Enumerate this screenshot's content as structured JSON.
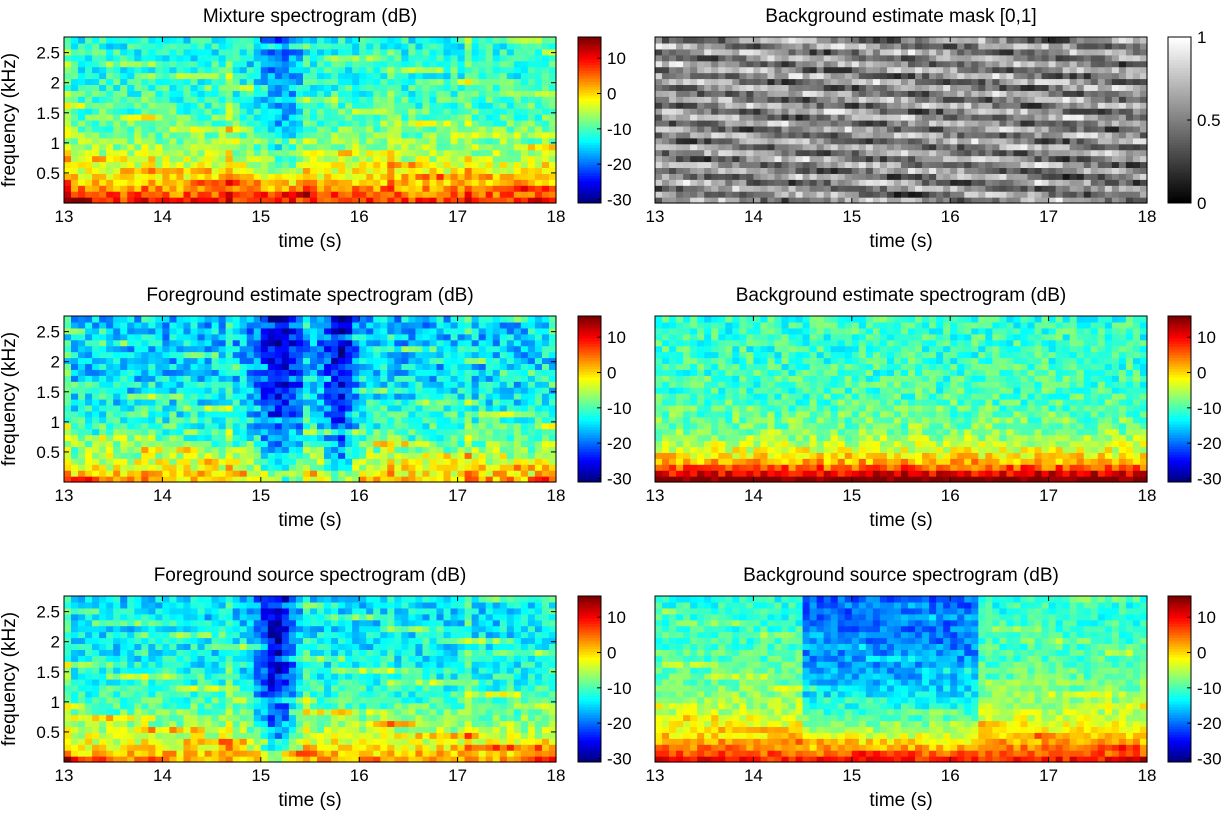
{
  "chart_data": [
    {
      "type": "heatmap",
      "title": "Mixture spectrogram (dB)",
      "xlabel": "time (s)",
      "ylabel": "frequency (kHz)",
      "xlim": [
        13,
        18
      ],
      "ylim": [
        0,
        2.76
      ],
      "xticks": [
        "13",
        "14",
        "15",
        "16",
        "17",
        "18"
      ],
      "yticks": [
        "0.5",
        "1",
        "1.5",
        "2",
        "2.5"
      ],
      "colormap": "jet",
      "clim": [
        -31,
        16
      ],
      "colorbar_ticks": [
        "10",
        "0",
        "-10",
        "-20",
        "-30"
      ]
    },
    {
      "type": "heatmap",
      "title": "Background estimate mask [0,1]",
      "xlabel": "time (s)",
      "ylabel": "",
      "xlim": [
        13,
        18
      ],
      "ylim": [
        0,
        2.76
      ],
      "xticks": [
        "13",
        "14",
        "15",
        "16",
        "17",
        "18"
      ],
      "yticks": [],
      "colormap": "gray",
      "clim": [
        0,
        1
      ],
      "colorbar_ticks": [
        "1",
        "0.5",
        "0"
      ]
    },
    {
      "type": "heatmap",
      "title": "Foreground estimate spectrogram (dB)",
      "xlabel": "time (s)",
      "ylabel": "frequency (kHz)",
      "xlim": [
        13,
        18
      ],
      "ylim": [
        0,
        2.76
      ],
      "xticks": [
        "13",
        "14",
        "15",
        "16",
        "17",
        "18"
      ],
      "yticks": [
        "0.5",
        "1",
        "1.5",
        "2",
        "2.5"
      ],
      "colormap": "jet",
      "clim": [
        -31,
        16
      ],
      "colorbar_ticks": [
        "10",
        "0",
        "-10",
        "-20",
        "-30"
      ]
    },
    {
      "type": "heatmap",
      "title": "Background estimate spectrogram (dB)",
      "xlabel": "time (s)",
      "ylabel": "",
      "xlim": [
        13,
        18
      ],
      "ylim": [
        0,
        2.76
      ],
      "xticks": [
        "13",
        "14",
        "15",
        "16",
        "17",
        "18"
      ],
      "yticks": [],
      "colormap": "jet",
      "clim": [
        -31,
        16
      ],
      "colorbar_ticks": [
        "10",
        "0",
        "-10",
        "-20",
        "-30"
      ]
    },
    {
      "type": "heatmap",
      "title": "Foreground source spectrogram (dB)",
      "xlabel": "time (s)",
      "ylabel": "frequency (kHz)",
      "xlim": [
        13,
        18
      ],
      "ylim": [
        0,
        2.76
      ],
      "xticks": [
        "13",
        "14",
        "15",
        "16",
        "17",
        "18"
      ],
      "yticks": [
        "0.5",
        "1",
        "1.5",
        "2",
        "2.5"
      ],
      "colormap": "jet",
      "clim": [
        -31,
        16
      ],
      "colorbar_ticks": [
        "10",
        "0",
        "-10",
        "-20",
        "-30"
      ]
    },
    {
      "type": "heatmap",
      "title": "Background source spectrogram (dB)",
      "xlabel": "time (s)",
      "ylabel": "",
      "xlim": [
        13,
        18
      ],
      "ylim": [
        0,
        2.76
      ],
      "xticks": [
        "13",
        "14",
        "15",
        "16",
        "17",
        "18"
      ],
      "yticks": [],
      "colormap": "jet",
      "clim": [
        -31,
        16
      ],
      "colorbar_ticks": [
        "10",
        "0",
        "-10",
        "-20",
        "-30"
      ]
    }
  ]
}
